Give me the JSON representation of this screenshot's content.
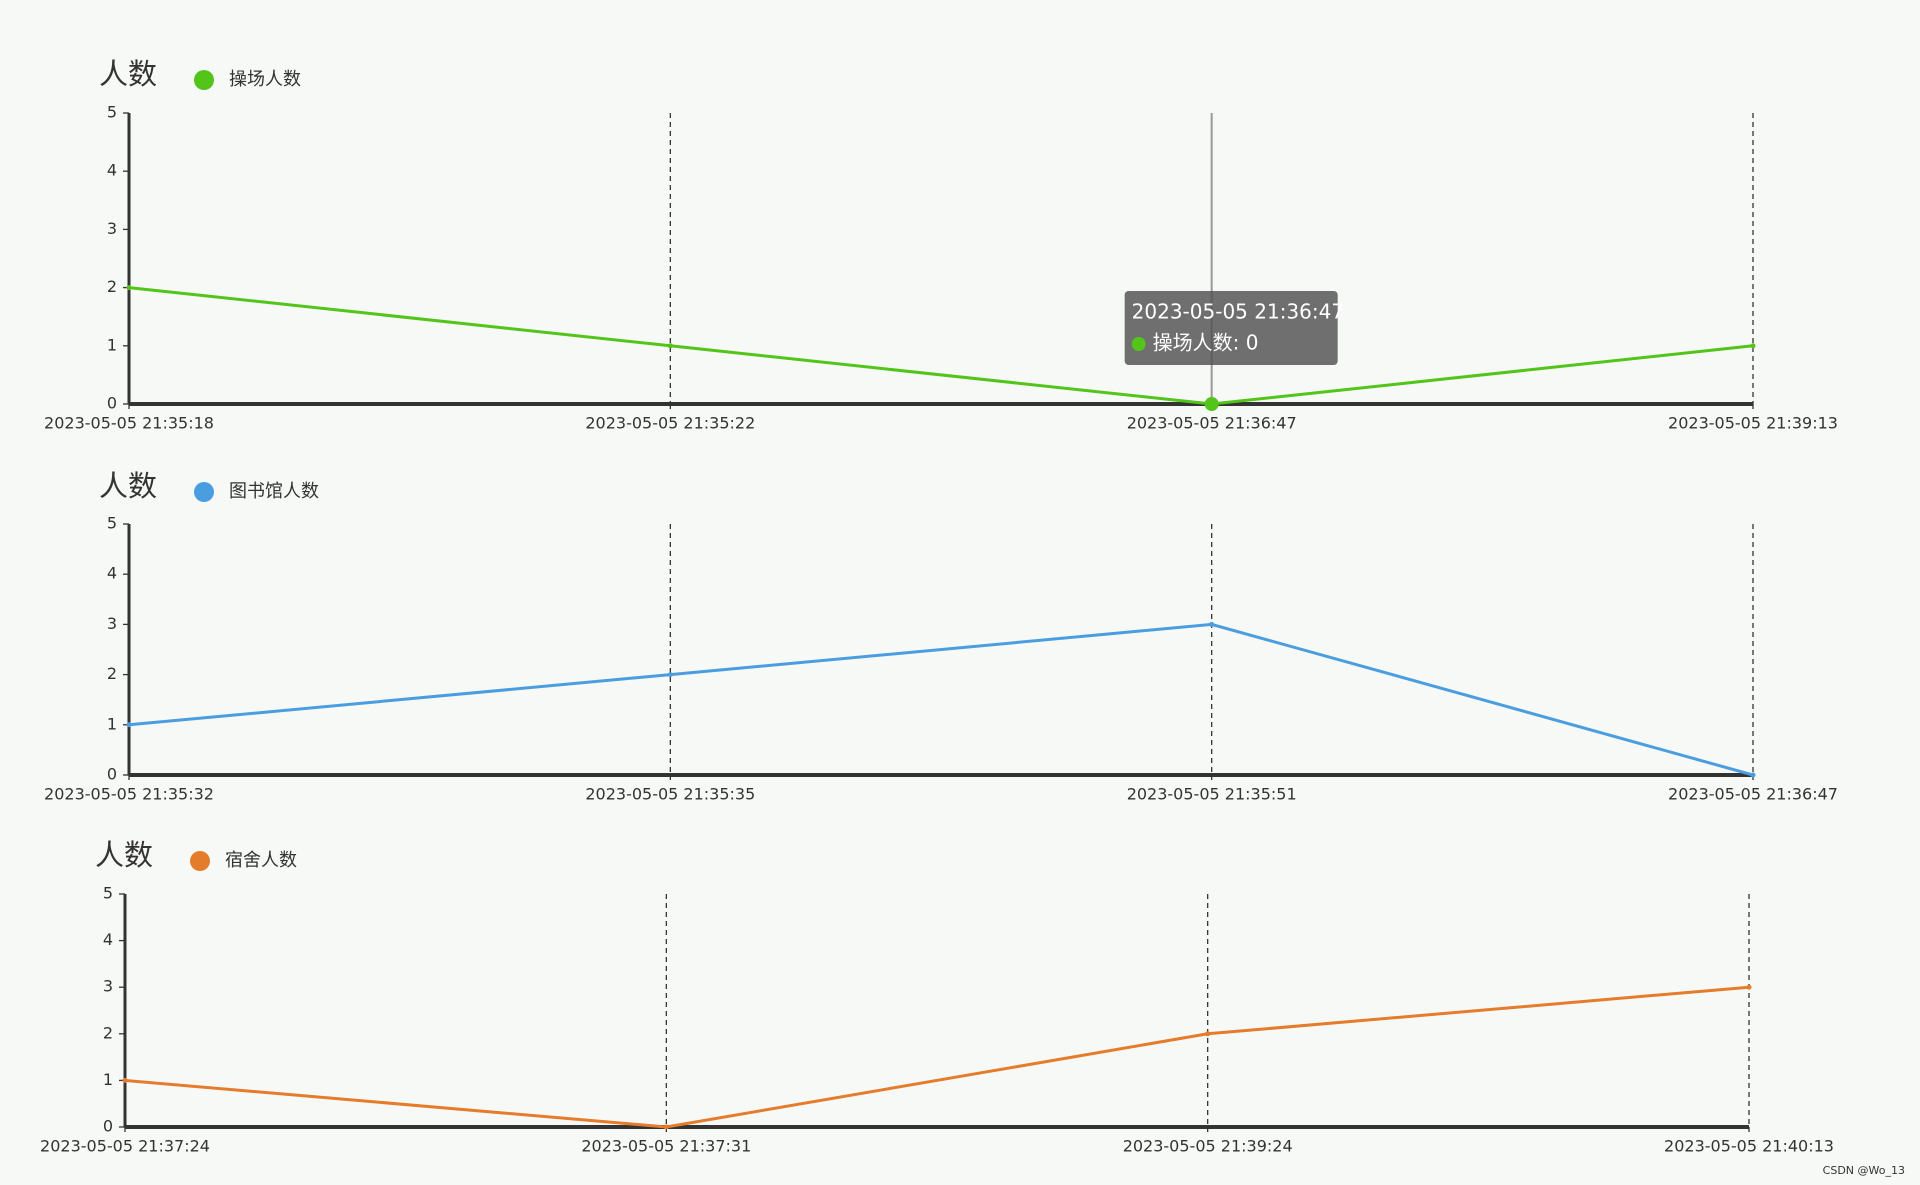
{
  "chart_data": [
    {
      "type": "line",
      "ylabel": "人数",
      "categories": [
        "2023-05-05 21:35:18",
        "2023-05-05 21:35:22",
        "2023-05-05 21:36:47",
        "2023-05-05 21:39:13"
      ],
      "series": [
        {
          "name": "操场人数",
          "color": "#52c41a",
          "values": [
            2,
            1,
            0,
            1
          ]
        }
      ],
      "ylim": [
        0,
        5
      ],
      "yticks": [
        0,
        1,
        2,
        3,
        4,
        5
      ],
      "tooltip": {
        "title": "2023-05-05 21:36:47",
        "text": "操场人数: 0"
      }
    },
    {
      "type": "line",
      "ylabel": "人数",
      "categories": [
        "2023-05-05 21:35:32",
        "2023-05-05 21:35:35",
        "2023-05-05 21:35:51",
        "2023-05-05 21:36:47"
      ],
      "series": [
        {
          "name": "图书馆人数",
          "color": "#4a9ee0",
          "values": [
            1,
            2,
            3,
            0
          ]
        }
      ],
      "ylim": [
        0,
        5
      ],
      "yticks": [
        0,
        1,
        2,
        3,
        4,
        5
      ]
    },
    {
      "type": "line",
      "ylabel": "人数",
      "categories": [
        "2023-05-05 21:37:24",
        "2023-05-05 21:37:31",
        "2023-05-05 21:39:24",
        "2023-05-05 21:40:13"
      ],
      "series": [
        {
          "name": "宿舍人数",
          "color": "#e57c2b",
          "values": [
            1,
            0,
            2,
            3
          ]
        }
      ],
      "ylim": [
        0,
        5
      ],
      "yticks": [
        0,
        1,
        2,
        3,
        4,
        5
      ]
    }
  ],
  "watermark": "CSDN @Wo_13"
}
